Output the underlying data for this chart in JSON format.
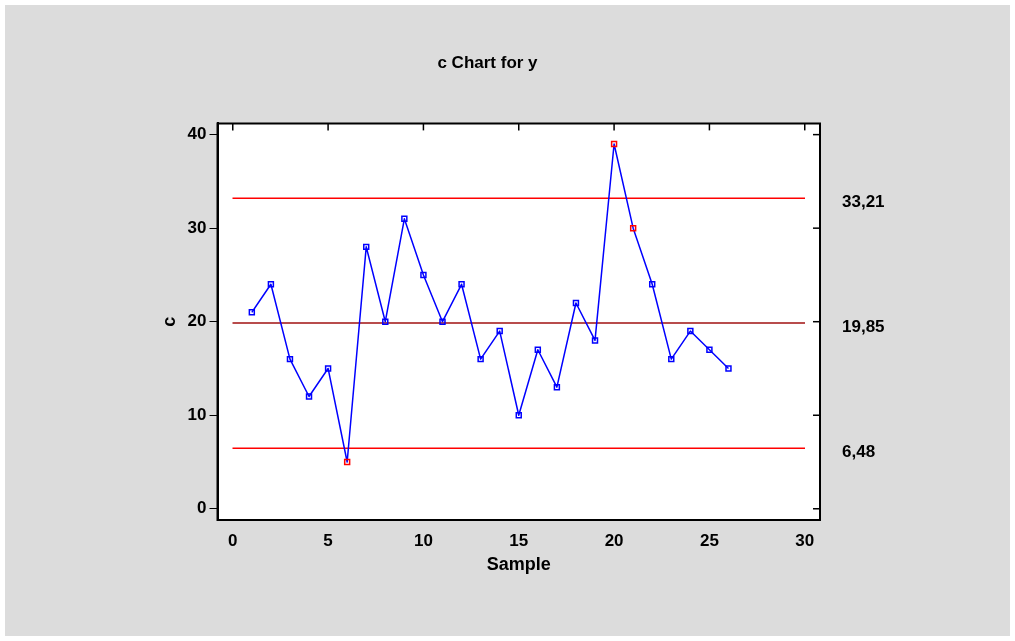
{
  "chart_data": {
    "type": "line",
    "title": "c Chart for y",
    "xlabel": "Sample",
    "ylabel": "c",
    "x": [
      1,
      2,
      3,
      4,
      5,
      6,
      7,
      8,
      9,
      10,
      11,
      12,
      13,
      14,
      15,
      16,
      17,
      18,
      19,
      20,
      21,
      22,
      23,
      24,
      25,
      26
    ],
    "series": [
      {
        "color": "#0000ff",
        "values": [
          21,
          24,
          16,
          12,
          15,
          5,
          28,
          20,
          31,
          25,
          20,
          24,
          16,
          19,
          10,
          17,
          13,
          22,
          18,
          39,
          30,
          24,
          16,
          19,
          17,
          15
        ],
        "colors": [
          "#0000ff",
          "#0000ff",
          "#0000ff",
          "#0000ff",
          "#0000ff",
          "#ff0000",
          "#0000ff",
          "#0000ff",
          "#0000ff",
          "#0000ff",
          "#0000ff",
          "#0000ff",
          "#0000ff",
          "#0000ff",
          "#0000ff",
          "#0000ff",
          "#0000ff",
          "#0000ff",
          "#0000ff",
          "#ff0000",
          "#ff0000",
          "#0000ff",
          "#0000ff",
          "#0000ff",
          "#0000ff",
          "#0000ff"
        ]
      }
    ],
    "xlim": [
      -0.8,
      30.8
    ],
    "xticks": [
      0,
      5,
      10,
      15,
      20,
      25,
      30
    ],
    "ylim": [
      -1.2,
      41.2
    ],
    "yticks": [
      0,
      10,
      20,
      30,
      40
    ],
    "ref_lines": [
      {
        "axis": "y",
        "value": 33.21,
        "label": "33,21",
        "color": "#ff0000"
      },
      {
        "axis": "y",
        "value": 19.85,
        "label": "19,85",
        "color": "#a01010"
      },
      {
        "axis": "y",
        "value": 6.48,
        "label": "6,48",
        "color": "#ff0000"
      }
    ],
    "marker": "square",
    "line_style": "solid",
    "grid": false,
    "legend": false
  }
}
